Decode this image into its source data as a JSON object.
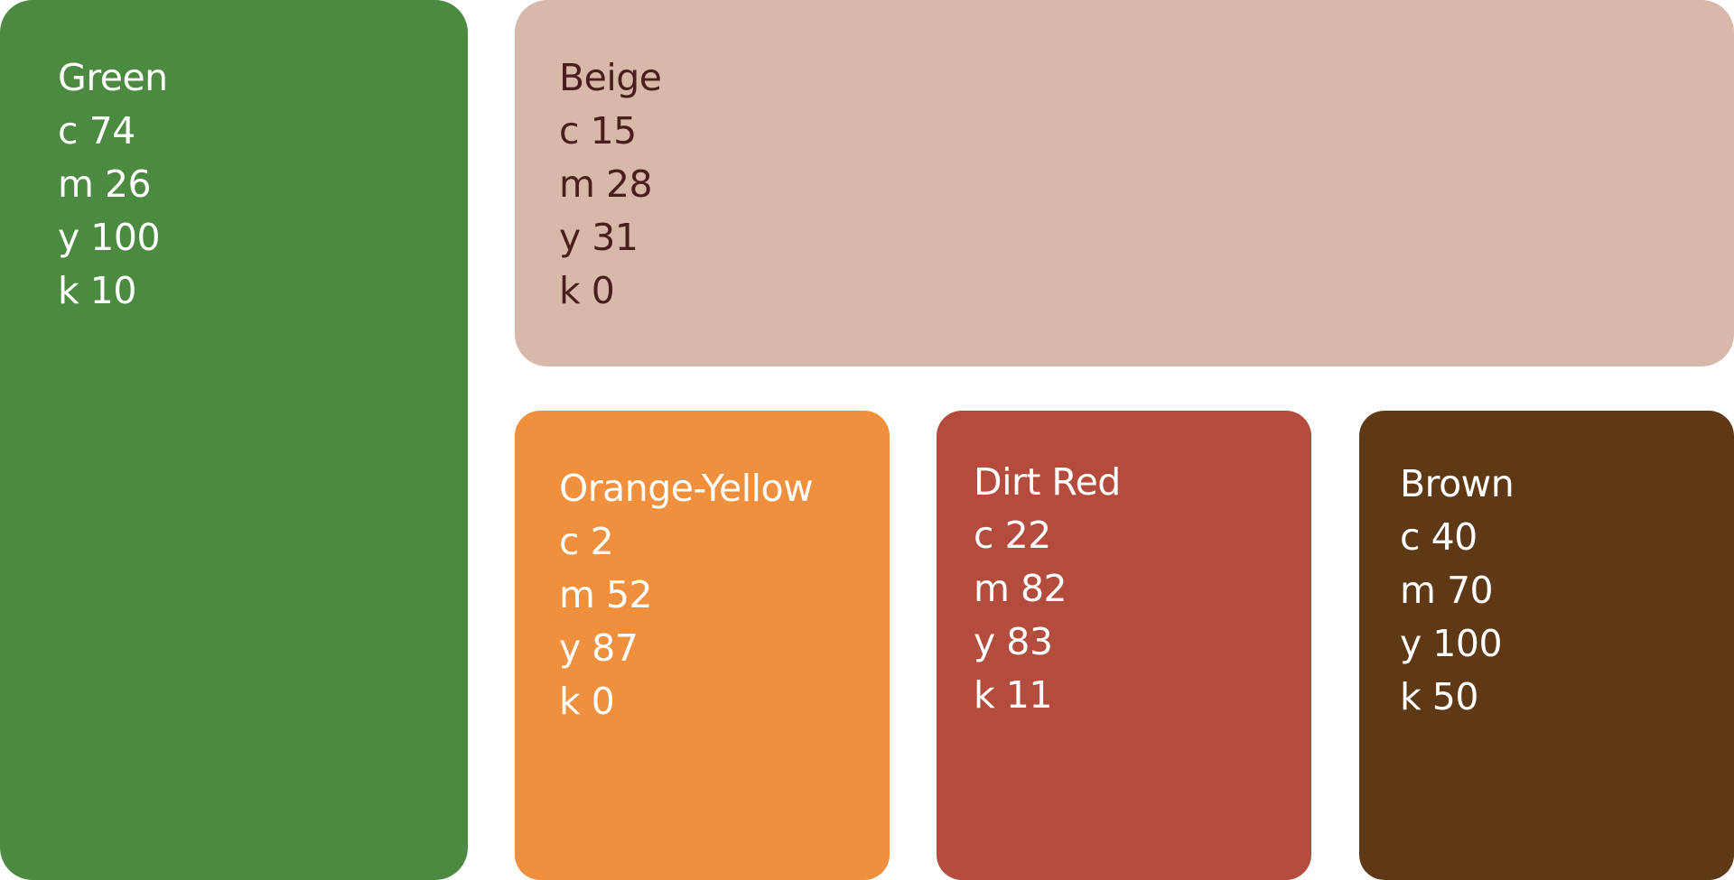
{
  "swatches": [
    {
      "name": "Green",
      "color": "#4d8a41",
      "text_color": "#ffffff",
      "c": "c 74",
      "m": "m 26",
      "y": "y 100",
      "k": "k 10"
    },
    {
      "name": "Beige",
      "color": "#d8b8a9",
      "text_color": "#4a1e1c",
      "c": "c 15",
      "m": "m 28",
      "y": "y 31",
      "k": "k 0"
    },
    {
      "name": "Orange-Yellow",
      "color": "#f0903c",
      "text_color": "#ffffff",
      "c": "c 2",
      "m": "m 52",
      "y": "y 87",
      "k": "k 0"
    },
    {
      "name": "Dirt Red",
      "color": "#b34c3c",
      "text_color": "#ffffff",
      "c": "c 22",
      "m": "m 82",
      "y": "y 83",
      "k": "k 11"
    },
    {
      "name": "Brown",
      "color": "#5f3816",
      "text_color": "#ffffff",
      "c": "c 40",
      "m": "m 70",
      "y": "y 100",
      "k": "k 50"
    }
  ]
}
